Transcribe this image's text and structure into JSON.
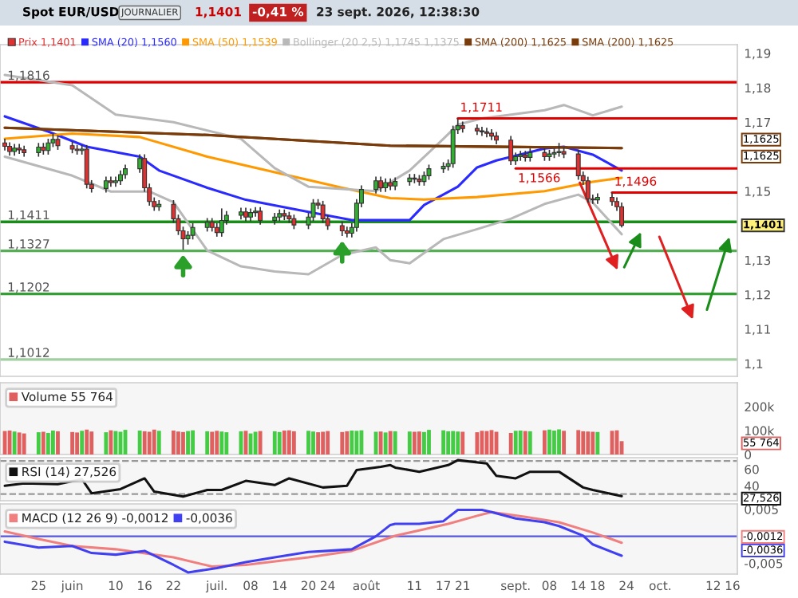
{
  "chart_data": [
    {
      "type": "candlestick",
      "title": "Spot EUR/USD",
      "annotations": [
        "JOURNALIER",
        "1,1401",
        "-0,41 %",
        "23 sept. 2026, 12:38:30",
        "Prix 1,1401",
        {
          "text": "1,1711",
          "x": "2026-08-20",
          "y": 1.1711
        },
        {
          "text": "1,1566",
          "x": "2026-09-01",
          "y": 1.1566
        },
        {
          "text": "1,1496",
          "x": "2026-09-21",
          "y": 1.1496
        },
        "1,1401",
        "1,1625",
        "1,1625"
      ],
      "x": [
        "2026-05-18",
        "2026-05-19",
        "2026-05-20",
        "2026-05-21",
        "2026-05-22",
        "2026-05-25",
        "2026-05-26",
        "2026-05-27",
        "2026-05-28",
        "2026-05-29",
        "2026-06-01",
        "2026-06-02",
        "2026-06-03",
        "2026-06-04",
        "2026-06-05",
        "2026-06-08",
        "2026-06-09",
        "2026-06-10",
        "2026-06-11",
        "2026-06-12",
        "2026-06-15",
        "2026-06-16",
        "2026-06-17",
        "2026-06-18",
        "2026-06-19",
        "2026-06-22",
        "2026-06-23",
        "2026-06-24",
        "2026-06-25",
        "2026-06-26",
        "2026-06-29",
        "2026-06-30",
        "2026-07-01",
        "2026-07-02",
        "2026-07-03",
        "2026-07-06",
        "2026-07-07",
        "2026-07-08",
        "2026-07-09",
        "2026-07-10",
        "2026-07-13",
        "2026-07-14",
        "2026-07-15",
        "2026-07-16",
        "2026-07-17",
        "2026-07-20",
        "2026-07-21",
        "2026-07-22",
        "2026-07-23",
        "2026-07-24",
        "2026-07-27",
        "2026-07-28",
        "2026-07-29",
        "2026-07-30",
        "2026-07-31",
        "2026-08-03",
        "2026-08-04",
        "2026-08-05",
        "2026-08-06",
        "2026-08-07",
        "2026-08-10",
        "2026-08-11",
        "2026-08-12",
        "2026-08-13",
        "2026-08-14",
        "2026-08-17",
        "2026-08-18",
        "2026-08-19",
        "2026-08-20",
        "2026-08-21",
        "2026-08-24",
        "2026-08-25",
        "2026-08-26",
        "2026-08-27",
        "2026-08-28",
        "2026-08-31",
        "2026-09-01",
        "2026-09-02",
        "2026-09-03",
        "2026-09-04",
        "2026-09-07",
        "2026-09-08",
        "2026-09-09",
        "2026-09-10",
        "2026-09-11",
        "2026-09-14",
        "2026-09-15",
        "2026-09-16",
        "2026-09-17",
        "2026-09-18",
        "2026-09-21",
        "2026-09-22",
        "2026-09-23"
      ],
      "ohlc": [
        [
          1.164,
          1.1652,
          1.1618,
          1.163
        ],
        [
          1.163,
          1.1642,
          1.1603,
          1.1615
        ],
        [
          1.1615,
          1.1637,
          1.1603,
          1.1625
        ],
        [
          1.1625,
          1.1637,
          1.1608,
          1.162
        ],
        [
          1.162,
          1.1632,
          1.16,
          1.1612
        ],
        [
          1.1612,
          1.164,
          1.16,
          1.1628
        ],
        [
          1.1628,
          1.164,
          1.1606,
          1.1618
        ],
        [
          1.1618,
          1.1652,
          1.1606,
          1.164
        ],
        [
          1.164,
          1.1668,
          1.1628,
          1.165
        ],
        [
          1.165,
          1.1662,
          1.162,
          1.1632
        ],
        [
          1.1632,
          1.1644,
          1.161,
          1.1622
        ],
        [
          1.1622,
          1.1634,
          1.1606,
          1.1618
        ],
        [
          1.1618,
          1.1634,
          1.1606,
          1.1622
        ],
        [
          1.1622,
          1.1634,
          1.1508,
          1.152
        ],
        [
          1.152,
          1.1532,
          1.1496,
          1.1508
        ],
        [
          1.1508,
          1.1542,
          1.1496,
          1.153
        ],
        [
          1.153,
          1.1542,
          1.1513,
          1.1525
        ],
        [
          1.1525,
          1.1542,
          1.1513,
          1.153
        ],
        [
          1.153,
          1.156,
          1.1518,
          1.1548
        ],
        [
          1.1548,
          1.1577,
          1.1536,
          1.1565
        ],
        [
          1.1565,
          1.1607,
          1.1553,
          1.1595
        ],
        [
          1.1595,
          1.1607,
          1.1498,
          1.151
        ],
        [
          1.151,
          1.1522,
          1.1458,
          1.147
        ],
        [
          1.147,
          1.1482,
          1.1443,
          1.1455
        ],
        [
          1.1455,
          1.1474,
          1.1443,
          1.1462
        ],
        [
          1.1462,
          1.1474,
          1.1408,
          1.142
        ],
        [
          1.142,
          1.1432,
          1.1373,
          1.1385
        ],
        [
          1.1385,
          1.1397,
          1.133,
          1.1362
        ],
        [
          1.1362,
          1.1384,
          1.1345,
          1.1372
        ],
        [
          1.1372,
          1.1407,
          1.136,
          1.1395
        ],
        [
          1.1395,
          1.1422,
          1.1383,
          1.141
        ],
        [
          1.141,
          1.1422,
          1.1383,
          1.1395
        ],
        [
          1.1395,
          1.1407,
          1.1368,
          1.138
        ],
        [
          1.138,
          1.145,
          1.1368,
          1.1415
        ],
        [
          1.1415,
          1.1442,
          1.1403,
          1.143
        ],
        [
          1.143,
          1.1452,
          1.1418,
          1.144
        ],
        [
          1.144,
          1.1452,
          1.1413,
          1.1425
        ],
        [
          1.1425,
          1.145,
          1.1413,
          1.1438
        ],
        [
          1.1438,
          1.1454,
          1.1426,
          1.1442
        ],
        [
          1.1442,
          1.1454,
          1.1403,
          1.1415
        ],
        [
          1.1415,
          1.1437,
          1.1403,
          1.1425
        ],
        [
          1.1425,
          1.1447,
          1.1413,
          1.1435
        ],
        [
          1.1435,
          1.1447,
          1.1416,
          1.1428
        ],
        [
          1.1428,
          1.144,
          1.1408,
          1.142
        ],
        [
          1.142,
          1.1432,
          1.139,
          1.1402
        ],
        [
          1.1402,
          1.1437,
          1.139,
          1.1425
        ],
        [
          1.1425,
          1.1477,
          1.1413,
          1.1465
        ],
        [
          1.1465,
          1.1477,
          1.1448,
          1.146
        ],
        [
          1.146,
          1.1472,
          1.1408,
          1.142
        ],
        [
          1.142,
          1.1432,
          1.1388,
          1.14
        ],
        [
          1.14,
          1.1412,
          1.137,
          1.1385
        ],
        [
          1.1385,
          1.1397,
          1.1366,
          1.1378
        ],
        [
          1.1378,
          1.1407,
          1.1366,
          1.1395
        ],
        [
          1.1395,
          1.1477,
          1.1383,
          1.1465
        ],
        [
          1.1465,
          1.1517,
          1.1453,
          1.1505
        ],
        [
          1.1505,
          1.1542,
          1.1493,
          1.153
        ],
        [
          1.153,
          1.1542,
          1.1498,
          1.151
        ],
        [
          1.151,
          1.1537,
          1.1498,
          1.1525
        ],
        [
          1.1525,
          1.1537,
          1.1503,
          1.1515
        ],
        [
          1.1515,
          1.154,
          1.1503,
          1.1528
        ],
        [
          1.1528,
          1.155,
          1.1516,
          1.1538
        ],
        [
          1.1538,
          1.155,
          1.1523,
          1.1535
        ],
        [
          1.1535,
          1.1547,
          1.1516,
          1.1528
        ],
        [
          1.1528,
          1.1557,
          1.1516,
          1.1545
        ],
        [
          1.1545,
          1.1577,
          1.1533,
          1.1565
        ],
        [
          1.1565,
          1.1584,
          1.1553,
          1.1572
        ],
        [
          1.1572,
          1.1592,
          1.156,
          1.158
        ],
        [
          1.158,
          1.169,
          1.1568,
          1.1678
        ],
        [
          1.1678,
          1.1711,
          1.1666,
          1.169
        ],
        [
          1.169,
          1.1702,
          1.167,
          1.1682
        ],
        [
          1.1682,
          1.1694,
          1.1663,
          1.1675
        ],
        [
          1.1675,
          1.1687,
          1.166,
          1.1672
        ],
        [
          1.1672,
          1.1684,
          1.1656,
          1.1668
        ],
        [
          1.1668,
          1.168,
          1.1648,
          1.166
        ],
        [
          1.166,
          1.1672,
          1.1636,
          1.1648
        ],
        [
          1.1648,
          1.166,
          1.1576,
          1.1588
        ],
        [
          1.1588,
          1.1612,
          1.1576,
          1.16
        ],
        [
          1.16,
          1.1617,
          1.1588,
          1.1605
        ],
        [
          1.1605,
          1.1617,
          1.1586,
          1.1598
        ],
        [
          1.1598,
          1.1624,
          1.1586,
          1.1612
        ],
        [
          1.1612,
          1.1624,
          1.1588,
          1.16
        ],
        [
          1.16,
          1.162,
          1.1588,
          1.1608
        ],
        [
          1.1608,
          1.1624,
          1.1596,
          1.1612
        ],
        [
          1.1612,
          1.164,
          1.16,
          1.1615
        ],
        [
          1.1615,
          1.1627,
          1.1596,
          1.1608
        ],
        [
          1.1608,
          1.162,
          1.1533,
          1.1545
        ],
        [
          1.1545,
          1.1557,
          1.1518,
          1.153
        ],
        [
          1.153,
          1.1542,
          1.1466,
          1.1478
        ],
        [
          1.1478,
          1.149,
          1.1463,
          1.1475
        ],
        [
          1.1475,
          1.1494,
          1.1463,
          1.1482
        ],
        [
          1.1482,
          1.1496,
          1.1458,
          1.147
        ],
        [
          1.147,
          1.1482,
          1.1443,
          1.1455
        ],
        [
          1.1455,
          1.1467,
          1.1395,
          1.1401
        ]
      ],
      "colors": [
        "#e03030",
        "#e03030",
        "#30b030",
        "#e03030",
        "#e03030",
        "#30b030",
        "#e03030",
        "#30b030",
        "#30b030",
        "#e03030",
        "#e03030",
        "#e03030",
        "#30b030",
        "#e03030",
        "#e03030",
        "#30b030",
        "#e03030",
        "#30b030",
        "#30b030",
        "#30b030",
        "#30b030",
        "#e03030",
        "#e03030",
        "#e03030",
        "#30b030",
        "#e03030",
        "#e03030",
        "#e03030",
        "#30b030",
        "#30b030",
        "#30b030",
        "#e03030",
        "#e03030",
        "#30b030",
        "#30b030",
        "#30b030",
        "#e03030",
        "#30b030",
        "#30b030",
        "#e03030",
        "#30b030",
        "#30b030",
        "#e03030",
        "#e03030",
        "#e03030",
        "#30b030",
        "#30b030",
        "#e03030",
        "#e03030",
        "#e03030",
        "#e03030",
        "#e03030",
        "#30b030",
        "#30b030",
        "#30b030",
        "#30b030",
        "#e03030",
        "#30b030",
        "#e03030",
        "#30b030",
        "#30b030",
        "#e03030",
        "#e03030",
        "#30b030",
        "#30b030",
        "#30b030",
        "#30b030",
        "#30b030",
        "#30b030",
        "#e03030",
        "#e03030",
        "#e03030",
        "#e03030",
        "#e03030",
        "#e03030",
        "#e03030",
        "#30b030",
        "#30b030",
        "#e03030",
        "#30b030",
        "#e03030",
        "#30b030",
        "#30b030",
        "#30b030",
        "#e03030",
        "#e03030",
        "#e03030",
        "#e03030",
        "#e03030",
        "#30b030",
        "#e03030",
        "#e03030",
        "#e03030"
      ],
      "series": [
        {
          "type": "line",
          "name": "SMA (20) 1,1560",
          "color": "#2a2aff",
          "x": [
            "2026-05-18",
            "2026-05-27",
            "2026-06-04",
            "2026-06-15",
            "2026-06-19",
            "2026-06-29",
            "2026-07-07",
            "2026-07-20",
            "2026-07-29",
            "2026-08-10",
            "2026-08-13",
            "2026-08-20",
            "2026-08-24",
            "2026-08-28",
            "2026-09-07",
            "2026-09-11",
            "2026-09-17",
            "2026-09-23"
          ],
          "values": [
            1.1717,
            1.1673,
            1.1629,
            1.16,
            1.156,
            1.151,
            1.1475,
            1.144,
            1.1416,
            1.1416,
            1.146,
            1.1513,
            1.1569,
            1.1589,
            1.1624,
            1.1629,
            1.1606,
            1.156
          ]
        },
        {
          "type": "line",
          "name": "SMA (50) 1,1539",
          "color": "#ff9900",
          "x": [
            "2026-05-18",
            "2026-06-01",
            "2026-06-15",
            "2026-06-29",
            "2026-07-13",
            "2026-07-27",
            "2026-08-06",
            "2026-08-13",
            "2026-08-24",
            "2026-09-07",
            "2026-09-17",
            "2026-09-23"
          ],
          "values": [
            1.1652,
            1.1667,
            1.1657,
            1.16,
            1.1555,
            1.151,
            1.148,
            1.1476,
            1.1483,
            1.15,
            1.1527,
            1.1539
          ]
        },
        {
          "type": "line",
          "name": "Bollinger (20 2,5) 1,1745 1,1375",
          "color": "#b8b8b8",
          "x": [
            "2026-05-18",
            "2026-06-01",
            "2026-06-10",
            "2026-06-22",
            "2026-07-06",
            "2026-07-13",
            "2026-07-20",
            "2026-08-03",
            "2026-08-10",
            "2026-08-17",
            "2026-08-20",
            "2026-08-25",
            "2026-09-07",
            "2026-09-11",
            "2026-09-17",
            "2026-09-23"
          ],
          "values": [
            1.1837,
            1.1807,
            1.1722,
            1.17,
            1.1652,
            1.1567,
            1.1513,
            1.15,
            1.156,
            1.1652,
            1.1693,
            1.1711,
            1.1735,
            1.175,
            1.172,
            1.1745
          ]
        },
        {
          "type": "line",
          "color": "#b8b8b8",
          "x": [
            "2026-05-18",
            "2026-06-01",
            "2026-06-09",
            "2026-06-17",
            "2026-06-22",
            "2026-06-29",
            "2026-07-06",
            "2026-07-13",
            "2026-07-20",
            "2026-07-27",
            "2026-08-03",
            "2026-08-06",
            "2026-08-10",
            "2026-08-17",
            "2026-08-24",
            "2026-08-31",
            "2026-09-07",
            "2026-09-14",
            "2026-09-17",
            "2026-09-23"
          ],
          "values": [
            1.16,
            1.1545,
            1.1499,
            1.1499,
            1.1468,
            1.1328,
            1.1282,
            1.1267,
            1.1259,
            1.1315,
            1.1337,
            1.13,
            1.1291,
            1.1361,
            1.139,
            1.142,
            1.1463,
            1.149,
            1.1467,
            1.1375
          ]
        },
        {
          "type": "line",
          "name": "SMA (200) 1,1625",
          "color": "#7a3b0a",
          "x": [
            "2026-05-18",
            "2026-06-29",
            "2026-08-06",
            "2026-09-23"
          ],
          "values": [
            1.1684,
            1.1663,
            1.1632,
            1.1625
          ]
        },
        {
          "type": "line",
          "name": "SMA (200) 1,1625",
          "color": "#7a3b0a",
          "x": [
            "2026-05-18",
            "2026-06-29",
            "2026-08-06",
            "2026-09-23"
          ],
          "values": [
            1.1684,
            1.1663,
            1.1632,
            1.1625
          ]
        },
        {
          "type": "line",
          "color": "#e00000",
          "x": [
            "2026-08-20",
            "2026-10-17"
          ],
          "values": [
            1.1711,
            1.1711
          ]
        },
        {
          "type": "line",
          "color": "#e00000",
          "x": [
            "2026-09-01",
            "2026-10-17"
          ],
          "values": [
            1.1566,
            1.1566
          ]
        },
        {
          "type": "line",
          "color": "#e00000",
          "x": [
            "2026-09-21",
            "2026-10-17"
          ],
          "values": [
            1.1496,
            1.1496
          ]
        }
      ],
      "ref_lines": [
        {
          "axis": "y",
          "value": 1.1816,
          "label": "1,1816",
          "color": "#e00000"
        },
        {
          "axis": "y",
          "value": 1.1411,
          "label": "1,1411",
          "color": "#1a8c1a"
        },
        {
          "axis": "y",
          "value": 1.1327,
          "label": "1,1327",
          "color": "#55b055"
        },
        {
          "axis": "y",
          "value": 1.1202,
          "label": "1,1202",
          "color": "#33a033"
        },
        {
          "axis": "y",
          "value": 1.1012,
          "label": "1,1012",
          "color": "#a0d0a0"
        }
      ],
      "xlim": [
        "2026-05-17",
        "2026-10-17"
      ],
      "ylim": [
        1.0963,
        1.1925
      ],
      "yticks": [
        {
          "value": 1.1,
          "label": "1,1"
        },
        {
          "value": 1.11,
          "label": "1,11"
        },
        {
          "value": 1.12,
          "label": "1,12"
        },
        {
          "value": 1.13,
          "label": "1,13"
        },
        {
          "value": 1.15,
          "label": "1,15"
        },
        {
          "value": 1.17,
          "label": "1,17"
        },
        {
          "value": 1.18,
          "label": "1,18"
        },
        {
          "value": 1.19,
          "label": "1,19"
        }
      ],
      "tick_labels": "y",
      "legend": "top left",
      "line_style": "solid"
    },
    {
      "type": "bar",
      "x": [
        "2026-05-18",
        "2026-05-19",
        "2026-05-20",
        "2026-05-21",
        "2026-05-22",
        "2026-05-25",
        "2026-05-26",
        "2026-05-27",
        "2026-05-28",
        "2026-05-29",
        "2026-06-01",
        "2026-06-02",
        "2026-06-03",
        "2026-06-04",
        "2026-06-05",
        "2026-06-08",
        "2026-06-09",
        "2026-06-10",
        "2026-06-11",
        "2026-06-12",
        "2026-06-15",
        "2026-06-16",
        "2026-06-17",
        "2026-06-18",
        "2026-06-19",
        "2026-06-22",
        "2026-06-23",
        "2026-06-24",
        "2026-06-25",
        "2026-06-26",
        "2026-06-29",
        "2026-06-30",
        "2026-07-01",
        "2026-07-02",
        "2026-07-03",
        "2026-07-06",
        "2026-07-07",
        "2026-07-08",
        "2026-07-09",
        "2026-07-10",
        "2026-07-13",
        "2026-07-14",
        "2026-07-15",
        "2026-07-16",
        "2026-07-17",
        "2026-07-20",
        "2026-07-21",
        "2026-07-22",
        "2026-07-23",
        "2026-07-24",
        "2026-07-27",
        "2026-07-28",
        "2026-07-29",
        "2026-07-30",
        "2026-07-31",
        "2026-08-03",
        "2026-08-04",
        "2026-08-05",
        "2026-08-06",
        "2026-08-07",
        "2026-08-10",
        "2026-08-11",
        "2026-08-12",
        "2026-08-13",
        "2026-08-14",
        "2026-08-17",
        "2026-08-18",
        "2026-08-19",
        "2026-08-20",
        "2026-08-21",
        "2026-08-24",
        "2026-08-25",
        "2026-08-26",
        "2026-08-27",
        "2026-08-28",
        "2026-08-31",
        "2026-09-01",
        "2026-09-02",
        "2026-09-03",
        "2026-09-04",
        "2026-09-07",
        "2026-09-08",
        "2026-09-09",
        "2026-09-10",
        "2026-09-11",
        "2026-09-14",
        "2026-09-15",
        "2026-09-16",
        "2026-09-17",
        "2026-09-18",
        "2026-09-21",
        "2026-09-22",
        "2026-09-23"
      ],
      "series": [
        {
          "name": "Volume 55 764",
          "values": [
            98000,
            100000,
            96000,
            92000,
            88000,
            93000,
            95000,
            90000,
            100000,
            97000,
            94000,
            92000,
            99000,
            104000,
            96000,
            93000,
            101000,
            98000,
            95000,
            103000,
            100000,
            97000,
            95000,
            104000,
            99000,
            100000,
            96000,
            94000,
            98000,
            101000,
            97000,
            95000,
            99000,
            96000,
            93000,
            97000,
            99000,
            88000,
            95000,
            98000,
            97000,
            94000,
            100000,
            101000,
            97000,
            99000,
            96000,
            93000,
            95000,
            98000,
            94000,
            97000,
            100000,
            99000,
            101000,
            95000,
            96000,
            92000,
            98000,
            97000,
            96000,
            95000,
            96000,
            94000,
            103000,
            101000,
            97000,
            98000,
            96000,
            95000,
            93000,
            99000,
            98000,
            102000,
            95000,
            90000,
            99000,
            100000,
            98000,
            97000,
            101000,
            104000,
            100000,
            105000,
            99000,
            102000,
            97000,
            96000,
            95000,
            94000,
            99000,
            101000,
            55764
          ],
          "colors": [
            "#e06060",
            "#e06060",
            "#44cc44",
            "#e06060",
            "#e06060",
            "#44cc44",
            "#e06060",
            "#44cc44",
            "#44cc44",
            "#e06060",
            "#e06060",
            "#e06060",
            "#44cc44",
            "#e06060",
            "#e06060",
            "#44cc44",
            "#e06060",
            "#44cc44",
            "#44cc44",
            "#44cc44",
            "#44cc44",
            "#e06060",
            "#e06060",
            "#e06060",
            "#44cc44",
            "#e06060",
            "#e06060",
            "#e06060",
            "#44cc44",
            "#44cc44",
            "#44cc44",
            "#e06060",
            "#e06060",
            "#44cc44",
            "#44cc44",
            "#44cc44",
            "#e06060",
            "#44cc44",
            "#44cc44",
            "#e06060",
            "#44cc44",
            "#44cc44",
            "#e06060",
            "#e06060",
            "#e06060",
            "#44cc44",
            "#44cc44",
            "#e06060",
            "#e06060",
            "#e06060",
            "#e06060",
            "#e06060",
            "#44cc44",
            "#44cc44",
            "#44cc44",
            "#44cc44",
            "#e06060",
            "#44cc44",
            "#e06060",
            "#44cc44",
            "#44cc44",
            "#e06060",
            "#e06060",
            "#44cc44",
            "#44cc44",
            "#44cc44",
            "#44cc44",
            "#44cc44",
            "#44cc44",
            "#e06060",
            "#e06060",
            "#e06060",
            "#e06060",
            "#e06060",
            "#e06060",
            "#e06060",
            "#44cc44",
            "#44cc44",
            "#e06060",
            "#44cc44",
            "#e06060",
            "#44cc44",
            "#44cc44",
            "#44cc44",
            "#e06060",
            "#e06060",
            "#e06060",
            "#e06060",
            "#e06060",
            "#44cc44",
            "#e06060",
            "#e06060",
            "#e06060"
          ]
        }
      ],
      "annotations": [
        "55 764"
      ],
      "xlim": [
        "2026-05-17",
        "2026-10-17"
      ],
      "ylim": [
        0,
        300000
      ],
      "yticks": [
        {
          "value": 0,
          "label": "0"
        },
        {
          "value": 100000,
          "label": "100k"
        },
        {
          "value": 200000,
          "label": "200k"
        }
      ],
      "tick_labels": "y",
      "legend": "top left"
    },
    {
      "type": "line",
      "series": [
        {
          "name": "RSI (14) 27,526",
          "color": "#111111",
          "x": [
            "2026-05-18",
            "2026-05-22",
            "2026-05-29",
            "2026-06-03",
            "2026-06-05",
            "2026-06-11",
            "2026-06-16",
            "2026-06-18",
            "2026-06-24",
            "2026-06-29",
            "2026-07-02",
            "2026-07-07",
            "2026-07-13",
            "2026-07-16",
            "2026-07-23",
            "2026-07-28",
            "2026-07-30",
            "2026-08-04",
            "2026-08-06",
            "2026-08-07",
            "2026-08-12",
            "2026-08-18",
            "2026-08-20",
            "2026-08-26",
            "2026-08-28",
            "2026-09-01",
            "2026-09-04",
            "2026-09-10",
            "2026-09-15",
            "2026-09-17",
            "2026-09-23"
          ],
          "values": [
            40,
            43,
            42,
            48,
            31,
            36,
            49,
            33,
            27,
            35,
            35,
            46,
            41,
            49,
            38,
            40,
            59,
            63,
            65,
            62,
            57,
            65,
            71,
            67,
            52,
            49,
            57,
            57,
            38,
            35,
            27.526
          ]
        }
      ],
      "ref_lines": [
        {
          "axis": "y",
          "value": 70,
          "color": "#999999",
          "line_style": "dashed"
        },
        {
          "axis": "y",
          "value": 30,
          "color": "#999999",
          "line_style": "dashed"
        }
      ],
      "annotations": [
        "27,526"
      ],
      "xlim": [
        "2026-05-17",
        "2026-10-17"
      ],
      "ylim": [
        22,
        74
      ],
      "yticks": [
        40,
        60
      ],
      "tick_labels": "y",
      "legend": "top left"
    },
    {
      "type": "line",
      "series": [
        {
          "name": "MACD (12 26 9) -0,0012",
          "color": "#f08080",
          "x": [
            "2026-05-18",
            "2026-05-25",
            "2026-06-01",
            "2026-06-10",
            "2026-06-22",
            "2026-06-30",
            "2026-07-07",
            "2026-07-20",
            "2026-07-29",
            "2026-08-06",
            "2026-08-07",
            "2026-08-18",
            "2026-08-24",
            "2026-08-27",
            "2026-09-03",
            "2026-09-10",
            "2026-09-17",
            "2026-09-23"
          ],
          "values": [
            0.0009,
            -0.0005,
            -0.0018,
            -0.0024,
            -0.0039,
            -0.0056,
            -0.0053,
            -0.0039,
            -0.0027,
            -0.0002,
            0.0001,
            0.0023,
            0.0038,
            0.0045,
            0.0036,
            0.0026,
            0.0007,
            -0.0012
          ]
        },
        {
          "name": "-0,0036",
          "color": "#4040f0",
          "x": [
            "2026-05-18",
            "2026-05-25",
            "2026-06-01",
            "2026-06-05",
            "2026-06-10",
            "2026-06-16",
            "2026-06-22",
            "2026-06-25",
            "2026-07-01",
            "2026-07-07",
            "2026-07-13",
            "2026-07-20",
            "2026-07-24",
            "2026-07-29",
            "2026-08-03",
            "2026-08-06",
            "2026-08-07",
            "2026-08-12",
            "2026-08-17",
            "2026-08-20",
            "2026-08-25",
            "2026-08-27",
            "2026-09-01",
            "2026-09-07",
            "2026-09-10",
            "2026-09-15",
            "2026-09-17",
            "2026-09-23"
          ],
          "values": [
            -0.001,
            -0.0021,
            -0.0018,
            -0.0031,
            -0.0034,
            -0.0027,
            -0.0053,
            -0.0067,
            -0.0059,
            -0.0048,
            -0.0039,
            -0.0029,
            -0.0027,
            -0.0024,
            0.0,
            0.0021,
            0.0023,
            0.0023,
            0.0028,
            0.0049,
            0.0049,
            0.0045,
            0.0033,
            0.0026,
            0.0019,
            0.0001,
            -0.0015,
            -0.0036
          ]
        }
      ],
      "ref_lines": [
        {
          "axis": "y",
          "value": 0,
          "color": "#5555dd"
        }
      ],
      "annotations": [
        "-0,0036",
        "-0,0012"
      ],
      "xlim": [
        "2026-05-17",
        "2026-10-17"
      ],
      "ylim": [
        -0.007,
        0.006
      ],
      "yticks": [
        {
          "value": 0.005,
          "label": "0,005"
        },
        {
          "value": -0.005,
          "label": "-0,005"
        }
      ],
      "xticks": [
        {
          "value": "2026-05-25",
          "label": "25"
        },
        {
          "value": "2026-06-01",
          "label": "juin"
        },
        {
          "value": "2026-06-10",
          "label": "10"
        },
        {
          "value": "2026-06-16",
          "label": "16"
        },
        {
          "value": "2026-06-22",
          "label": "22"
        },
        {
          "value": "2026-07-01",
          "label": "juil."
        },
        {
          "value": "2026-07-08",
          "label": "08"
        },
        {
          "value": "2026-07-14",
          "label": "14"
        },
        {
          "value": "2026-07-20",
          "label": "20"
        },
        {
          "value": "2026-07-24",
          "label": "24"
        },
        {
          "value": "2026-08-01",
          "label": "août"
        },
        {
          "value": "2026-08-11",
          "label": "11"
        },
        {
          "value": "2026-08-17",
          "label": "17"
        },
        {
          "value": "2026-08-21",
          "label": "21"
        },
        {
          "value": "2026-09-01",
          "label": "sept."
        },
        {
          "value": "2026-09-08",
          "label": "08"
        },
        {
          "value": "2026-09-14",
          "label": "14"
        },
        {
          "value": "2026-09-18",
          "label": "18"
        },
        {
          "value": "2026-09-24",
          "label": "24"
        },
        {
          "value": "2026-10-01",
          "label": "oct."
        },
        {
          "value": "2026-10-12",
          "label": "12"
        },
        {
          "value": "2026-10-16",
          "label": "16"
        }
      ],
      "legend": "top left"
    }
  ]
}
